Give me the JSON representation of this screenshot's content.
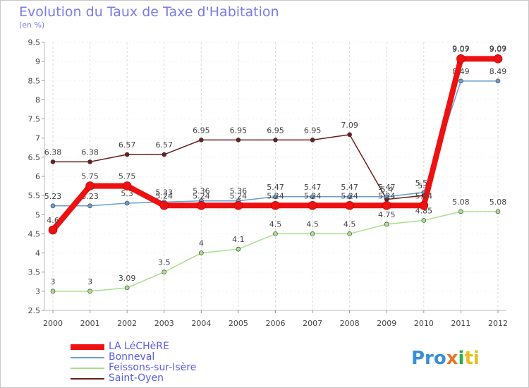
{
  "title": "Evolution du Taux de Taxe d'Habitation",
  "subtitle": "(en %)",
  "logo": {
    "p1": "Pro",
    "p2": "x",
    "p3": "i",
    "p4": "ti"
  },
  "chart_data": {
    "type": "line",
    "x": [
      "2000",
      "2001",
      "2002",
      "2003",
      "2004",
      "2005",
      "2006",
      "2007",
      "2008",
      "2009",
      "2010",
      "2011",
      "2012"
    ],
    "ylim": [
      2.5,
      9.5
    ],
    "yticks": [
      "2.5",
      "3",
      "3.5",
      "4",
      "4.5",
      "5",
      "5.5",
      "6",
      "6.5",
      "7",
      "7.5",
      "8",
      "8.5",
      "9",
      "9.5"
    ],
    "legend_position": "bottom-left",
    "series": [
      {
        "name": "Saint-Oyen",
        "color": "#6b1e1e",
        "width": 1.5,
        "values": [
          6.38,
          6.38,
          6.57,
          6.57,
          6.95,
          6.95,
          6.95,
          6.95,
          7.09,
          5.4,
          5.5,
          9.09,
          9.09
        ],
        "labels": [
          "6.38",
          "6.38",
          "6.57",
          "6.57",
          "6.95",
          "6.95",
          "6.95",
          "6.95",
          "7.09",
          "5.4",
          "5.5",
          "9.09",
          "9.09"
        ]
      },
      {
        "name": "Bonneval",
        "color": "#6a9fd0",
        "width": 1.5,
        "values": [
          5.23,
          5.23,
          5.3,
          5.33,
          5.36,
          5.36,
          5.47,
          5.47,
          5.47,
          5.47,
          5.58,
          8.49,
          8.49
        ],
        "labels": [
          "5.23",
          "5.23",
          "5.3",
          "5.33",
          "5.36",
          "5.36",
          "5.47",
          "5.47",
          "5.47",
          "5.47",
          "5.58",
          "8.49",
          "8.49"
        ]
      },
      {
        "name": "Feissons-sur-Isère",
        "color": "#a8e08a",
        "width": 1.5,
        "values": [
          3,
          3,
          3.09,
          3.5,
          4,
          4.1,
          4.5,
          4.5,
          4.5,
          4.75,
          4.85,
          5.08,
          5.08
        ],
        "labels": [
          "3",
          "3",
          "3.09",
          "3.5",
          "4",
          "4.1",
          "4.5",
          "4.5",
          "4.5",
          "4.75",
          "4.85",
          "5.08",
          "5.08"
        ]
      },
      {
        "name": "LA LéCHèRE",
        "color": "#ee1111",
        "width": 8,
        "values": [
          4.6,
          5.75,
          5.75,
          5.24,
          5.24,
          5.24,
          5.24,
          5.24,
          5.24,
          5.24,
          5.24,
          9.07,
          9.07
        ],
        "labels": [
          "4.6",
          "5.75",
          "5.75",
          "5.24",
          "5.24",
          "5.24",
          "5.24",
          "5.24",
          "5.24",
          "5.24",
          "5.24",
          "9.07",
          "9.07"
        ]
      }
    ],
    "legend_order": [
      "LA LéCHèRE",
      "Bonneval",
      "Feissons-sur-Isère",
      "Saint-Oyen"
    ]
  }
}
